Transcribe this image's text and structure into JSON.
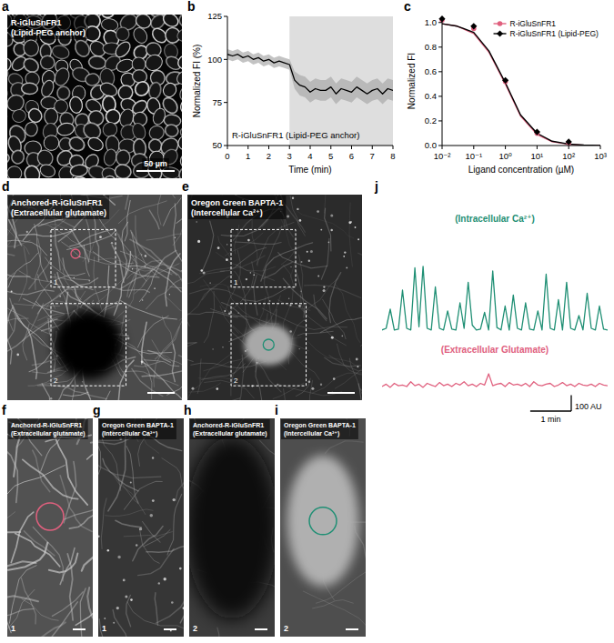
{
  "images": [
    {
      "letter": "a",
      "label": "R-iGluSnFR1 (Lipid-PEG anchor)",
      "scale_bar": "50 µm"
    },
    {
      "letter": "d",
      "label": "Anchored-R-iGluSnFR1 (Extracellular glutamate)",
      "boxes": [
        "1",
        "2"
      ]
    },
    {
      "letter": "e",
      "label": "Oregon Green BAPTA-1 (Intercellular Ca²⁺)",
      "boxes": [
        "1",
        "2"
      ]
    },
    {
      "letter": "f",
      "label": "Anchored-R-iGluSnFR1 (Extracellular glutamate)",
      "region": "1"
    },
    {
      "letter": "g",
      "label": "Oregon Green BAPTA-1 (Intercellular Ca²⁺)",
      "region": "1"
    },
    {
      "letter": "h",
      "label": "Anchored-R-iGluSnFR1 (Extracellular glutamate)",
      "region": "2"
    },
    {
      "letter": "i",
      "label": "Oregon Green BAPTA-1 (Intercellular Ca²⁺)",
      "region": "2"
    }
  ],
  "chart_data": [
    {
      "letter": "b",
      "type": "line",
      "xlabel": "Time (min)",
      "ylabel": "Normalized FI (%)",
      "annotation": "R-iGluSnFR1 (Lipid-PEG anchor)",
      "highlight_x": [
        3,
        8
      ],
      "x": [
        0,
        0.25,
        0.5,
        0.75,
        1,
        1.25,
        1.5,
        1.75,
        2,
        2.25,
        2.5,
        2.75,
        3,
        3.25,
        3.5,
        3.75,
        4,
        4.25,
        4.5,
        4.75,
        5,
        5.25,
        5.5,
        5.75,
        6,
        6.25,
        6.5,
        6.75,
        7,
        7.25,
        7.5,
        7.75,
        8
      ],
      "series": [
        {
          "color": "#000000",
          "values": [
            103,
            102,
            103,
            101,
            102,
            100,
            101,
            99,
            100,
            98,
            99,
            98,
            97,
            88,
            85,
            84,
            81,
            83,
            82,
            82,
            84,
            80,
            83,
            82,
            81,
            84,
            82,
            80,
            82,
            83,
            80,
            83,
            82
          ],
          "error": [
            3,
            3,
            3,
            3,
            3,
            3,
            3,
            3,
            3,
            3,
            3,
            3,
            3,
            5,
            6,
            6,
            6,
            6,
            6,
            6,
            6,
            6,
            6,
            6,
            6,
            6,
            6,
            6,
            6,
            6,
            6,
            6,
            6
          ]
        }
      ],
      "xlim": [
        0,
        8
      ],
      "ylim": [
        50,
        125
      ],
      "xticks": [
        0,
        1,
        2,
        3,
        4,
        5,
        6,
        7,
        8
      ],
      "yticks": [
        50,
        75,
        100,
        125
      ]
    },
    {
      "letter": "c",
      "type": "scatter",
      "log": "x",
      "xlabel": "Ligand concentration (µM)",
      "ylabel": "Normalized FI",
      "legend": "upper right",
      "series": [
        {
          "name": "R-iGluSnFR1",
          "color": "#e0607e",
          "marker": "circle",
          "x": [
            0.01,
            0.1,
            1,
            10,
            100
          ],
          "values": [
            1.02,
            0.95,
            0.52,
            0.1,
            0.02
          ],
          "fit_x": [
            0.01,
            0.03,
            0.1,
            0.3,
            1,
            3,
            10,
            30,
            100,
            300,
            1000
          ],
          "fit_values": [
            0.99,
            0.97,
            0.91,
            0.76,
            0.5,
            0.24,
            0.09,
            0.03,
            0.01,
            0.003,
            0.001
          ]
        },
        {
          "name": "R-iGluSnFR1 (Lipid-PEG)",
          "color": "#000000",
          "marker": "diamond",
          "x": [
            0.01,
            0.1,
            1,
            10,
            100
          ],
          "values": [
            1.03,
            0.97,
            0.53,
            0.11,
            0.03
          ],
          "fit_x": [
            0.01,
            0.03,
            0.1,
            0.3,
            1,
            3,
            10,
            30,
            100,
            300,
            1000
          ],
          "fit_values": [
            0.99,
            0.97,
            0.92,
            0.77,
            0.51,
            0.25,
            0.1,
            0.035,
            0.012,
            0.004,
            0.001
          ]
        }
      ],
      "xlim": [
        0.01,
        1000
      ],
      "ylim": [
        0,
        1.05
      ],
      "xticks": [
        {
          "value": 0.01,
          "label": "10⁻²"
        },
        {
          "value": 0.1,
          "label": "10⁻¹"
        },
        {
          "value": 1,
          "label": "10⁰"
        },
        {
          "value": 10,
          "label": "10¹"
        },
        {
          "value": 100,
          "label": "10²"
        },
        {
          "value": 1000,
          "label": "10³"
        }
      ],
      "yticks": [
        {
          "value": 0,
          "label": "0.0"
        },
        0.2,
        0.4,
        0.6,
        0.8,
        {
          "value": 1,
          "label": "1.0"
        }
      ]
    },
    {
      "letter": "j",
      "type": "line",
      "tick_labels": false,
      "x": [
        0,
        0.1,
        0.2,
        0.3,
        0.4,
        0.5,
        0.6,
        0.7,
        0.8,
        0.9,
        1,
        1.1,
        1.2,
        1.3,
        1.4,
        1.5,
        1.6,
        1.7,
        1.8,
        1.9,
        2,
        2.1,
        2.2,
        2.3,
        2.4,
        2.5,
        2.6,
        2.7,
        2.8,
        2.9,
        3,
        3.1,
        3.2,
        3.3,
        3.4,
        3.5,
        3.6,
        3.7,
        3.8,
        3.9,
        4,
        4.1,
        4.2,
        4.3,
        4.4,
        4.5,
        4.6,
        4.7,
        4.8,
        4.9,
        5,
        5.1,
        5.2,
        5.3,
        5.4,
        5.5
      ],
      "xlim": [
        0,
        5.5
      ],
      "series": [
        {
          "name": "(Intracellular Ca²⁺)",
          "color": "#1f8f74",
          "ylim": [
            0,
            600
          ],
          "values": [
            30,
            40,
            160,
            30,
            35,
            280,
            40,
            30,
            420,
            50,
            430,
            40,
            30,
            300,
            40,
            30,
            150,
            35,
            30,
            200,
            40,
            330,
            60,
            30,
            35,
            140,
            30,
            400,
            45,
            30,
            180,
            30,
            250,
            40,
            30,
            200,
            35,
            30,
            150,
            30,
            380,
            40,
            30,
            220,
            30,
            330,
            40,
            30,
            120,
            30,
            260,
            40,
            30,
            180,
            35,
            30
          ]
        },
        {
          "name": "(Extracellular Glutamate)",
          "color": "#e0607e",
          "ylim": [
            0,
            200
          ],
          "values": [
            40,
            55,
            35,
            60,
            45,
            50,
            40,
            70,
            45,
            55,
            35,
            60,
            50,
            40,
            65,
            45,
            55,
            40,
            60,
            50,
            70,
            45,
            55,
            40,
            60,
            50,
            120,
            45,
            55,
            60,
            40,
            65,
            50,
            55,
            45,
            60,
            40,
            70,
            50,
            45,
            55,
            60,
            40,
            50,
            65,
            45,
            55,
            40,
            60,
            50,
            45,
            55,
            40,
            60,
            50,
            45
          ]
        }
      ],
      "scale_bar": {
        "x": 1,
        "x_label": "1 min",
        "y": 100,
        "y_label": "100 AU"
      }
    }
  ]
}
